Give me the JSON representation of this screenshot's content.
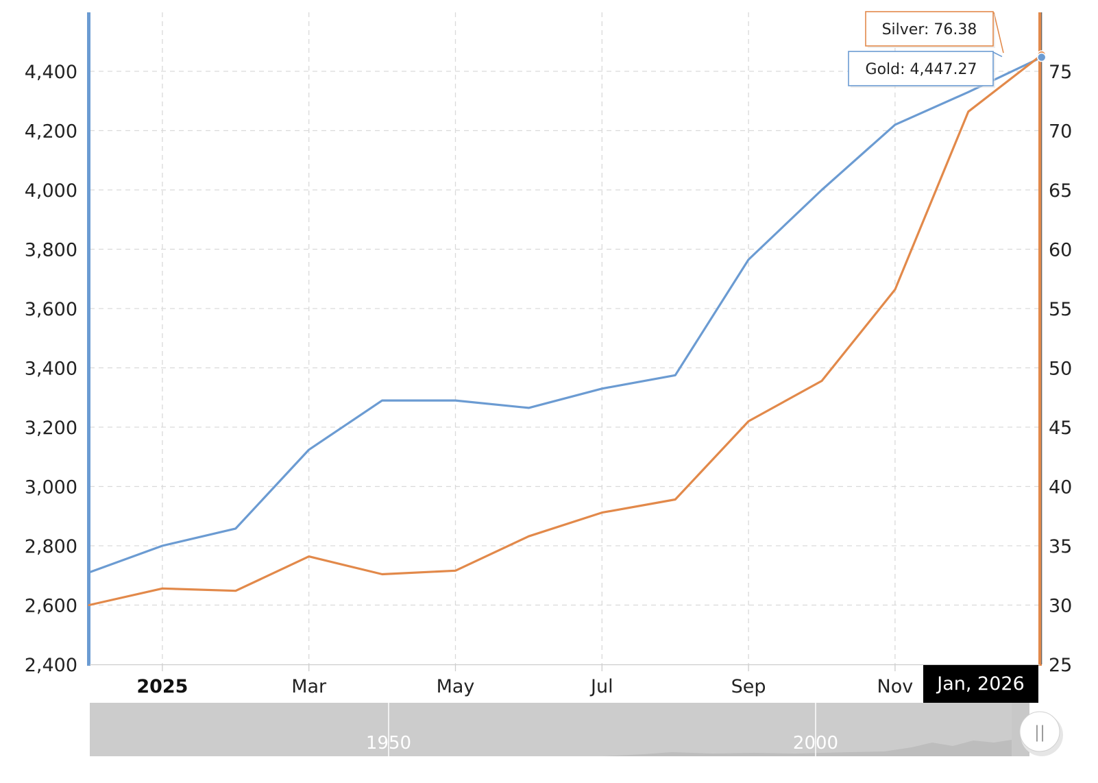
{
  "chart_data": {
    "type": "line",
    "x": [
      "Dec 2024",
      "Jan 2025",
      "Feb 2025",
      "Mar 2025",
      "Apr 2025",
      "May 2025",
      "Jun 2025",
      "Jul 2025",
      "Aug 2025",
      "Sep 2025",
      "Oct 2025",
      "Nov 2025",
      "Dec 2025",
      "Jan 2026"
    ],
    "series": [
      {
        "name": "Gold",
        "axis": "left",
        "color": "#6b9bd2",
        "values": [
          2710,
          2800,
          2858,
          3124,
          3290,
          3290,
          3265,
          3330,
          3375,
          3765,
          4000,
          4220,
          4330,
          4447.27
        ]
      },
      {
        "name": "Silver",
        "axis": "right",
        "color": "#e2894a",
        "values": [
          30.0,
          31.4,
          31.2,
          34.1,
          32.6,
          32.9,
          35.8,
          37.8,
          38.9,
          45.5,
          48.9,
          56.6,
          71.6,
          76.38
        ]
      }
    ],
    "y_left": {
      "min": 2400,
      "max": 4400,
      "ticks": [
        "2,400",
        "2,600",
        "2,800",
        "3,000",
        "3,200",
        "3,400",
        "3,600",
        "3,800",
        "4,000",
        "4,200",
        "4,400"
      ]
    },
    "y_right": {
      "min": 25,
      "max": 75,
      "ticks": [
        "25",
        "30",
        "35",
        "40",
        "45",
        "50",
        "55",
        "60",
        "65",
        "70",
        "75"
      ]
    },
    "x_ticks": [
      {
        "label": "2025",
        "at": "Jan 2025",
        "bold": true
      },
      {
        "label": "Mar",
        "at": "Mar 2025"
      },
      {
        "label": "May",
        "at": "May 2025"
      },
      {
        "label": "Jul",
        "at": "Jul 2025"
      },
      {
        "label": "Sep",
        "at": "Sep 2025"
      },
      {
        "label": "Nov",
        "at": "Nov 2025"
      }
    ],
    "tooltips": {
      "silver": "Silver: 76.38",
      "gold": "Gold: 4,447.27"
    },
    "crosshair_label": "Jan, 2026",
    "navigator": {
      "labels": [
        "1950",
        "2000"
      ],
      "handle_glyph": "||"
    },
    "grid": true
  }
}
